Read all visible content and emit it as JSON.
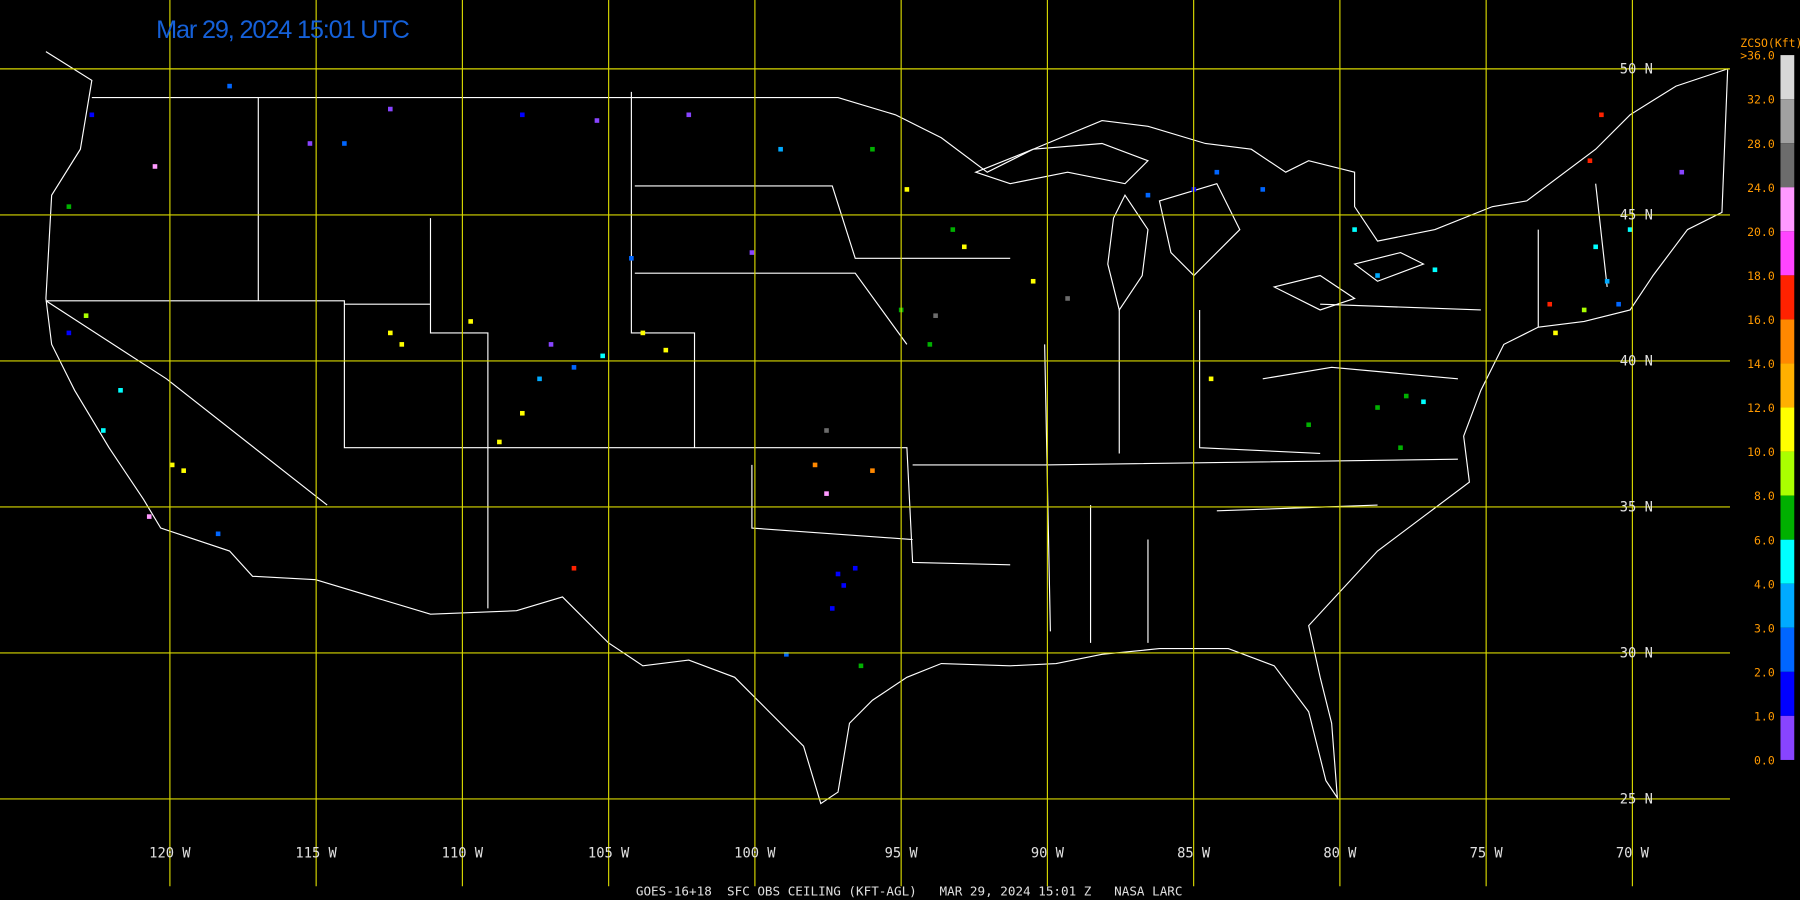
{
  "header": {
    "timestamp": "Mar 29, 2024 15:01 UTC"
  },
  "map": {
    "latitude_labels": [
      "50 N",
      "45 N",
      "40 N",
      "35 N",
      "30 N",
      "25 N"
    ],
    "longitude_labels": [
      "120 W",
      "115 W",
      "110 W",
      "105 W",
      "100 W",
      "95 W",
      "90 W",
      "85 W",
      "80 W",
      "75 W",
      "70 W"
    ]
  },
  "legend": {
    "title": "ZCSO(Kft)",
    "labels": [
      ">36.0",
      "32.0",
      "28.0",
      "24.0",
      "20.0",
      "18.0",
      "16.0",
      "14.0",
      "12.0",
      "10.0",
      "8.0",
      "6.0",
      "4.0",
      "3.0",
      "2.0",
      "1.0",
      "0.0"
    ],
    "colors": [
      "#d8d8d8",
      "#a0a0a0",
      "#6c6c6c",
      "#ff99ff",
      "#ff44ff",
      "#ff2200",
      "#ff8800",
      "#ffb000",
      "#ffff00",
      "#aaff00",
      "#00b000",
      "#00ffff",
      "#00aaff",
      "#0066ff",
      "#0000ff",
      "#8844ff"
    ]
  },
  "footer": {
    "caption": "GOES-16+18  SFC OBS CEILING (KFT-AGL)   MAR 29, 2024 15:01 Z   NASA LARC"
  }
}
